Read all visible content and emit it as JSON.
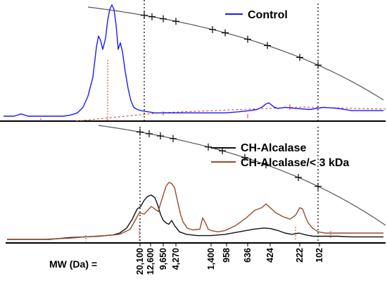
{
  "chart_data": [
    {
      "type": "line",
      "panel": "top",
      "series": [
        {
          "name": "Control",
          "color": "#1a1aff",
          "x": [
            5,
            20,
            30,
            40,
            50,
            60,
            70,
            80,
            90,
            100,
            110,
            118,
            125,
            132,
            137,
            140,
            143,
            146,
            150,
            153,
            156,
            159,
            162,
            165,
            168,
            171,
            174,
            178,
            182,
            186,
            190,
            195,
            200,
            210,
            220,
            240,
            260,
            280,
            300,
            320,
            340,
            355,
            365,
            372,
            378,
            382,
            386,
            390,
            395,
            405,
            420,
            440,
            460,
            480,
            500,
            520,
            545
          ],
          "y": [
            0.0,
            0.0,
            0.02,
            0.0,
            0.0,
            0.0,
            0.0,
            0.0,
            0.0,
            0.01,
            0.03,
            0.08,
            0.18,
            0.35,
            0.62,
            0.72,
            0.68,
            0.6,
            0.7,
            0.86,
            0.96,
            1.0,
            0.96,
            0.82,
            0.6,
            0.66,
            0.58,
            0.4,
            0.25,
            0.14,
            0.08,
            0.06,
            0.05,
            0.04,
            0.03,
            0.03,
            0.03,
            0.03,
            0.03,
            0.03,
            0.04,
            0.05,
            0.06,
            0.08,
            0.11,
            0.12,
            0.1,
            0.08,
            0.07,
            0.08,
            0.07,
            0.06,
            0.08,
            0.07,
            0.05,
            0.05,
            0.05
          ]
        }
      ]
    },
    {
      "type": "line",
      "panel": "bottom",
      "series": [
        {
          "name": "CH-Alcalase",
          "color": "#111111",
          "x": [
            10,
            40,
            70,
            100,
            120,
            140,
            160,
            170,
            180,
            188,
            195,
            200,
            205,
            210,
            215,
            220,
            224,
            228,
            232,
            236,
            240,
            244,
            248,
            255,
            265,
            280,
            300,
            320,
            340,
            360,
            375,
            385,
            395,
            405,
            415,
            425,
            435,
            445,
            460,
            480,
            500,
            520,
            545
          ],
          "y": [
            0.0,
            0.0,
            0.0,
            0.03,
            0.04,
            0.05,
            0.07,
            0.1,
            0.18,
            0.32,
            0.48,
            0.52,
            0.62,
            0.68,
            0.7,
            0.66,
            0.55,
            0.4,
            0.3,
            0.26,
            0.24,
            0.3,
            0.22,
            0.12,
            0.08,
            0.06,
            0.06,
            0.08,
            0.12,
            0.16,
            0.18,
            0.17,
            0.14,
            0.1,
            0.08,
            0.1,
            0.07,
            0.05,
            0.05,
            0.05,
            0.04,
            0.04,
            0.04
          ]
        },
        {
          "name": "CH-Alcalase/< 3 kDa",
          "color": "#9b4a2a",
          "x": [
            10,
            60,
            100,
            120,
            150,
            170,
            185,
            192,
            198,
            205,
            210,
            215,
            220,
            225,
            228,
            232,
            236,
            240,
            244,
            248,
            252,
            256,
            260,
            266,
            274,
            284,
            288,
            292,
            296,
            300,
            310,
            320,
            335,
            350,
            362,
            372,
            378,
            384,
            392,
            402,
            412,
            420,
            426,
            430,
            434,
            438,
            444,
            452,
            462,
            475,
            490,
            510,
            545
          ],
          "y": [
            0.0,
            0.0,
            0.02,
            0.04,
            0.06,
            0.08,
            0.16,
            0.3,
            0.42,
            0.4,
            0.46,
            0.52,
            0.48,
            0.44,
            0.56,
            0.7,
            0.84,
            0.9,
            0.88,
            0.82,
            0.62,
            0.42,
            0.28,
            0.18,
            0.15,
            0.16,
            0.34,
            0.26,
            0.16,
            0.14,
            0.12,
            0.14,
            0.22,
            0.34,
            0.46,
            0.5,
            0.56,
            0.5,
            0.42,
            0.36,
            0.32,
            0.38,
            0.5,
            0.48,
            0.36,
            0.26,
            0.18,
            0.12,
            0.1,
            0.1,
            0.1,
            0.1,
            0.1
          ]
        }
      ]
    }
  ],
  "calibration_markers": {
    "top": [
      205,
      216,
      232,
      250,
      302,
      320,
      352,
      380,
      426,
      452
    ],
    "bottom": [
      199,
      212,
      228,
      246,
      296,
      316,
      348,
      378,
      424,
      452
    ]
  },
  "mw_axis": {
    "label": "MW (Da) =",
    "ticks": [
      "20,100",
      "12,600",
      "9,650",
      "4,270",
      "1,400",
      "958",
      "636",
      "424",
      "222",
      "102"
    ]
  },
  "legend": {
    "top": [
      {
        "label": "Control",
        "color": "#1a1aff"
      }
    ],
    "bottom": [
      {
        "label": "CH-Alcalase",
        "color": "#111111"
      },
      {
        "label": "CH-Alcalase/< 3 kDa",
        "color": "#9b4a2a"
      }
    ]
  },
  "colors": {
    "calibration_curve": "#555555",
    "baseline_dash": "#e03030",
    "axis": "#000000",
    "vertical_guides": "#000000"
  }
}
